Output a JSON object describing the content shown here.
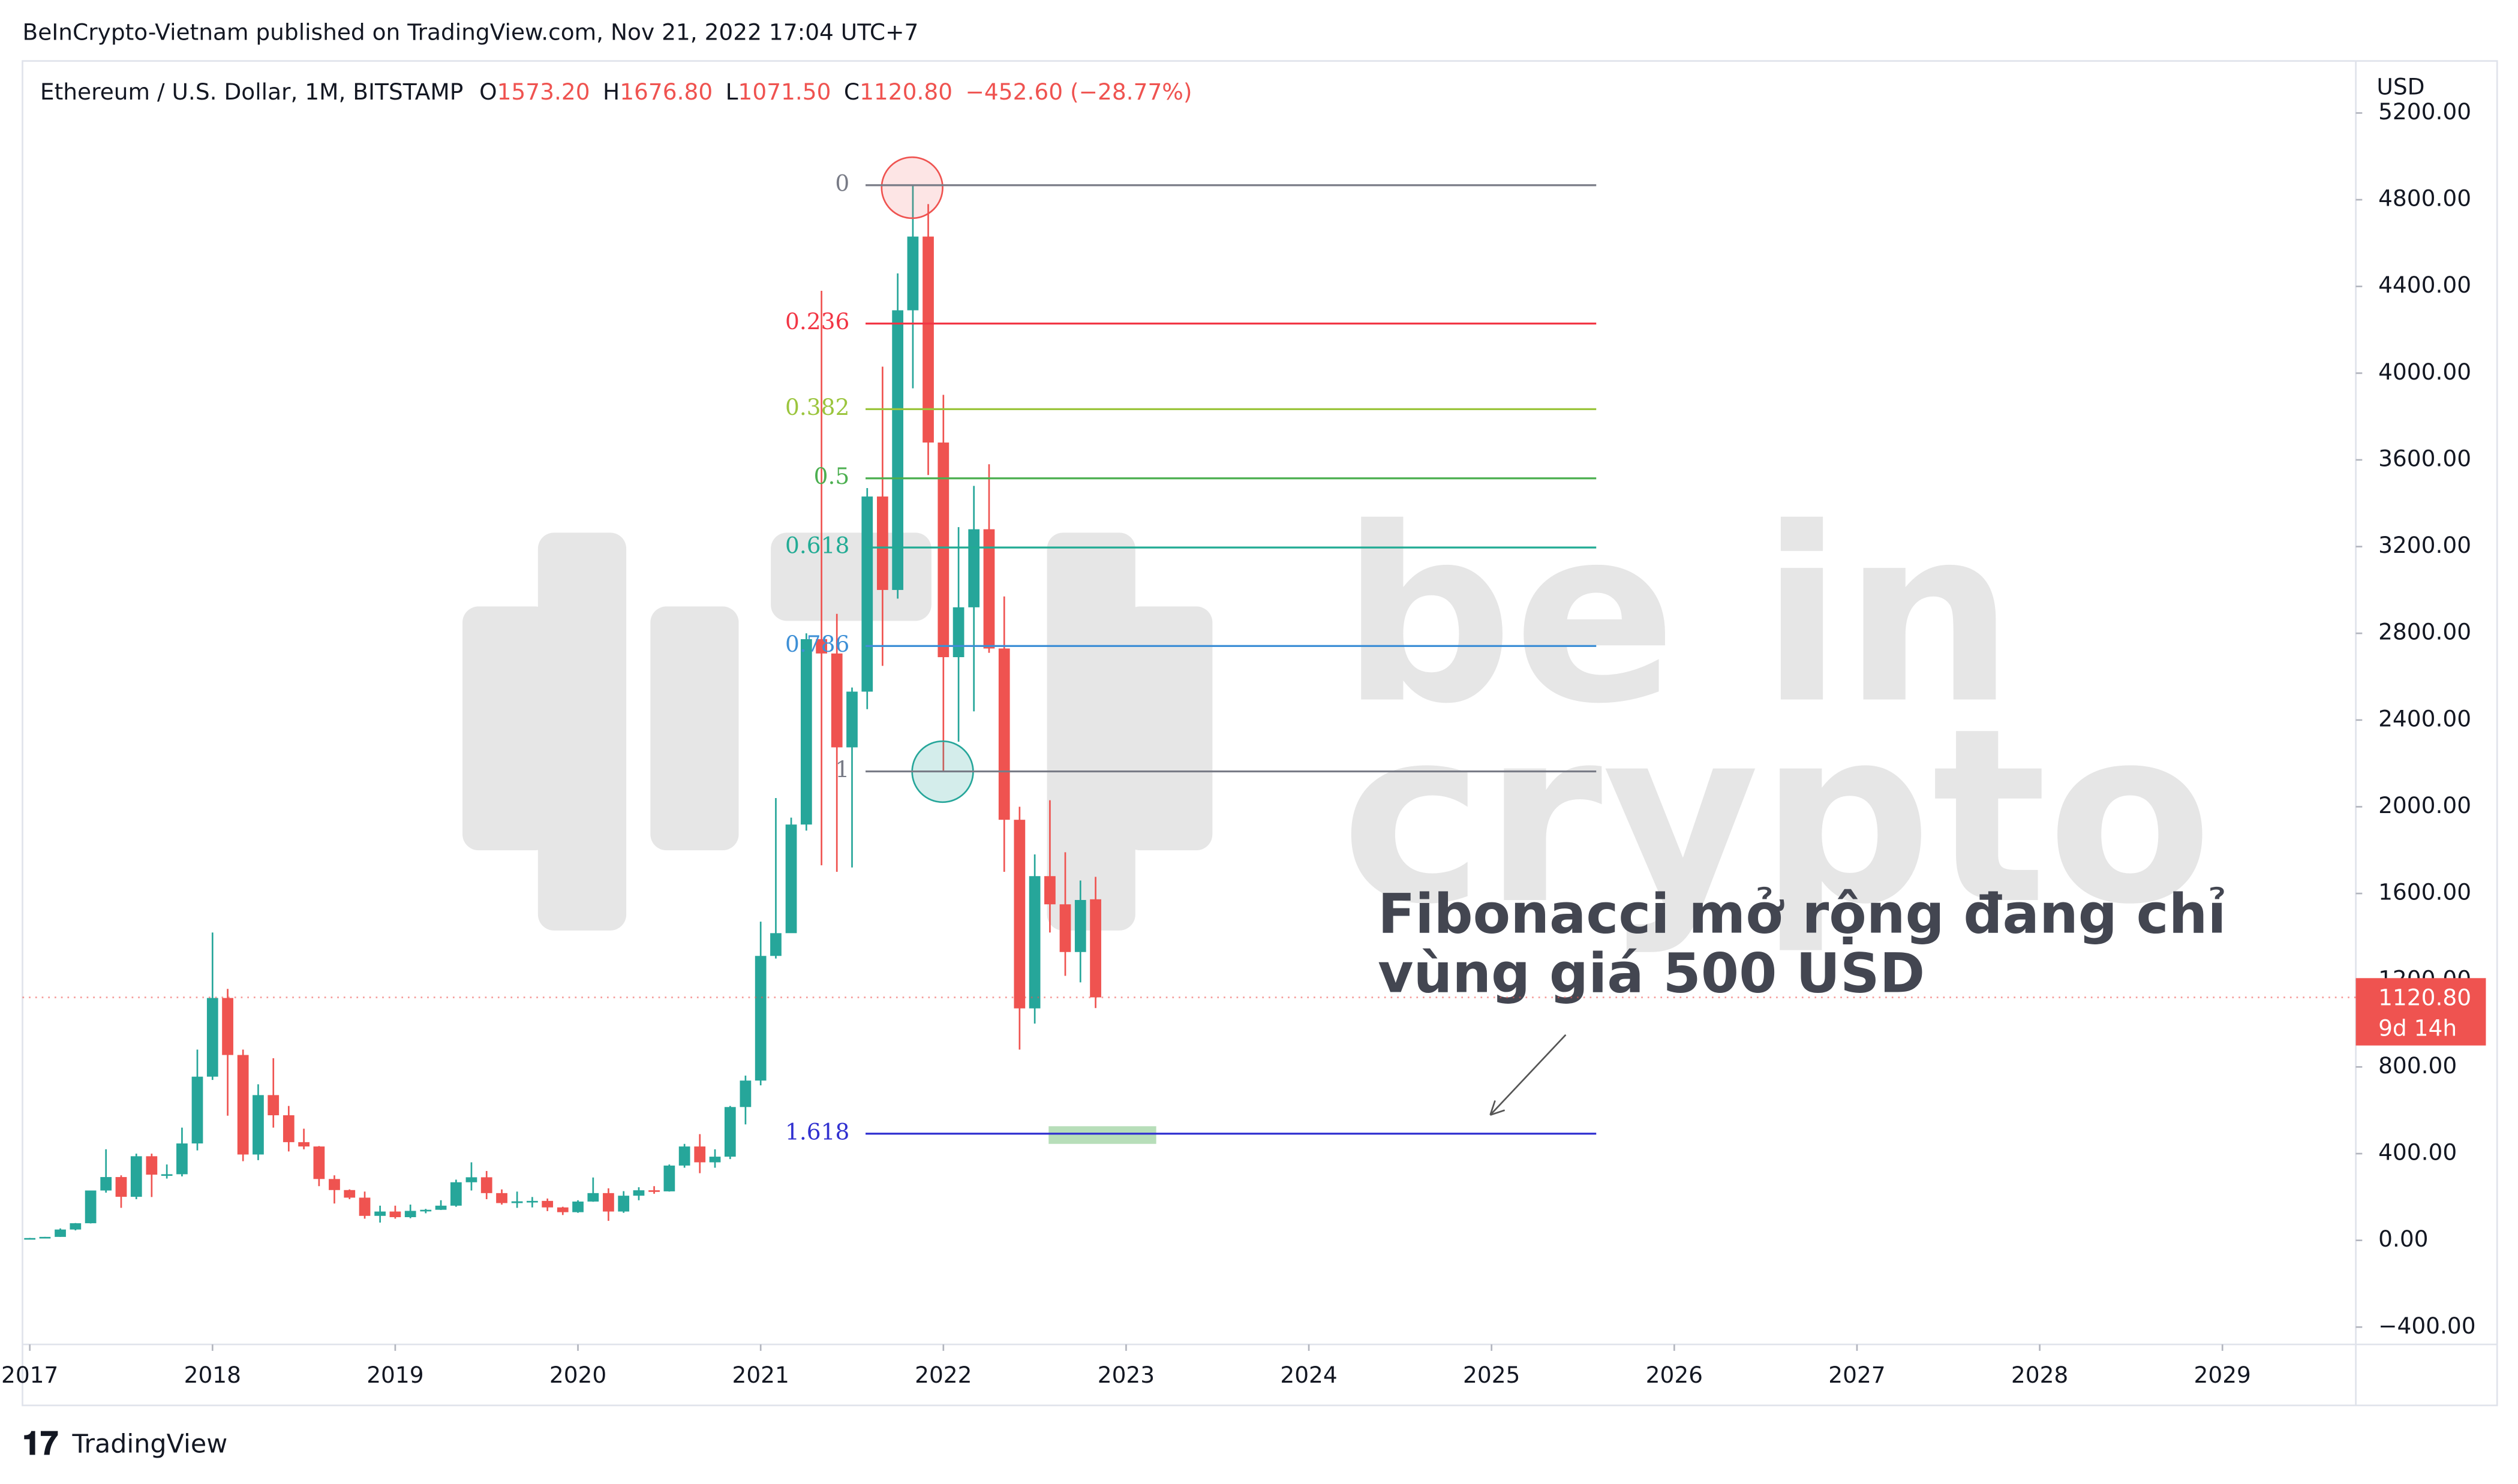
{
  "header": {
    "published": "BeInCrypto-Vietnam published on TradingView.com, Nov 21, 2022 17:04 UTC+7",
    "symbol": "Ethereum / U.S. Dollar, 1M, BITSTAMP",
    "ohlc": [
      {
        "key": "O",
        "value": "1573.20"
      },
      {
        "key": "H",
        "value": "1676.80"
      },
      {
        "key": "L",
        "value": "1071.50"
      },
      {
        "key": "C",
        "value": "1120.80"
      }
    ],
    "change": "−452.60 (−28.77%)"
  },
  "footer": {
    "brand": "TradingView"
  },
  "watermark": [
    "be in",
    "crypto"
  ],
  "chart_data": {
    "type": "candlestick",
    "x": [
      2017,
      2017.083,
      2017.167,
      2017.25,
      2017.333,
      2017.417,
      2017.5,
      2017.583,
      2017.667,
      2017.75,
      2017.833,
      2017.917,
      2018,
      2018.083,
      2018.167,
      2018.25,
      2018.333,
      2018.417,
      2018.5,
      2018.583,
      2018.667,
      2018.75,
      2018.833,
      2018.917,
      2019,
      2019.083,
      2019.167,
      2019.25,
      2019.333,
      2019.417,
      2019.5,
      2019.583,
      2019.667,
      2019.75,
      2019.833,
      2019.917,
      2020,
      2020.083,
      2020.167,
      2020.25,
      2020.333,
      2020.417,
      2020.5,
      2020.583,
      2020.667,
      2020.75,
      2020.833,
      2020.917,
      2021,
      2021.083,
      2021.167,
      2021.25,
      2021.333,
      2021.417,
      2021.5,
      2021.583,
      2021.667,
      2021.75,
      2021.833,
      2021.917,
      2022,
      2022.083,
      2022.167,
      2022.25,
      2022.333,
      2022.417,
      2022.5,
      2022.583,
      2022.667,
      2022.75,
      2022.833
    ],
    "open": [
      8,
      10.7,
      16,
      50,
      79,
      230,
      292,
      201,
      388,
      303,
      305,
      447,
      755,
      1118,
      855,
      396,
      670,
      577,
      453,
      433,
      283,
      232,
      197,
      113,
      133,
      107,
      136,
      141,
      160,
      268,
      291,
      218,
      172,
      180,
      182,
      152,
      130,
      179,
      218,
      133,
      206,
      231,
      226,
      345,
      433,
      360,
      386,
      615,
      737,
      1312,
      1417,
      1918,
      2773,
      2707,
      2274,
      2531,
      3431,
      3000,
      4290,
      4630,
      3680,
      2690,
      2920,
      3280,
      2730,
      1940,
      1070,
      1680,
      1550,
      1330,
      1573.2
    ],
    "high": [
      11,
      16,
      55,
      80,
      230,
      420,
      300,
      400,
      400,
      350,
      520,
      880,
      1420,
      1160,
      880,
      720,
      840,
      620,
      515,
      435,
      300,
      235,
      225,
      160,
      160,
      165,
      145,
      185,
      280,
      360,
      320,
      235,
      225,
      200,
      193,
      155,
      185,
      290,
      240,
      227,
      245,
      250,
      350,
      445,
      490,
      420,
      620,
      760,
      1470,
      2040,
      1950,
      2800,
      4380,
      2890,
      2550,
      3470,
      4030,
      4460,
      4870,
      4780,
      3900,
      3290,
      3480,
      3580,
      2970,
      2000,
      1780,
      2030,
      1790,
      1660,
      1676.8
    ],
    "low": [
      8,
      10.6,
      16,
      46,
      78,
      220,
      150,
      190,
      200,
      285,
      295,
      415,
      740,
      575,
      365,
      370,
      520,
      410,
      420,
      250,
      170,
      190,
      100,
      82,
      100,
      102,
      125,
      140,
      155,
      230,
      190,
      165,
      150,
      152,
      135,
      117,
      127,
      178,
      90,
      127,
      185,
      215,
      225,
      335,
      310,
      335,
      375,
      535,
      715,
      1300,
      1420,
      1890,
      1730,
      1700,
      1720,
      2450,
      2650,
      2960,
      3930,
      3530,
      2160,
      2300,
      2440,
      2710,
      1700,
      880,
      1000,
      1420,
      1220,
      1190,
      1071.5
    ],
    "close": [
      10.7,
      16,
      50,
      79,
      230,
      292,
      201,
      388,
      303,
      305,
      447,
      755,
      1118,
      855,
      396,
      670,
      577,
      453,
      433,
      283,
      232,
      197,
      113,
      133,
      107,
      136,
      141,
      160,
      268,
      291,
      218,
      172,
      180,
      182,
      152,
      130,
      179,
      218,
      133,
      206,
      231,
      226,
      345,
      433,
      360,
      386,
      615,
      737,
      1312,
      1417,
      1918,
      2773,
      2707,
      2274,
      2531,
      3431,
      3000,
      4290,
      4630,
      3680,
      2690,
      2920,
      3280,
      2730,
      1940,
      1070,
      1680,
      1550,
      1330,
      1570,
      1120.8
    ],
    "up_color": "#26a69a",
    "down_color": "#ef5350",
    "xlim": [
      2016.96,
      2029.73
    ],
    "xticks": [
      2017,
      2018,
      2019,
      2020,
      2021,
      2022,
      2023,
      2024,
      2025,
      2026,
      2027,
      2028,
      2029
    ],
    "ylim": [
      -480,
      5440
    ],
    "yticks": [
      {
        "value": -400,
        "label": "−400.00"
      },
      {
        "value": 0,
        "label": "0.00"
      },
      {
        "value": 400,
        "label": "400.00"
      },
      {
        "value": 800,
        "label": "800.00"
      },
      {
        "value": 1200,
        "label": "1200.00"
      },
      {
        "value": 1600,
        "label": "1600.00"
      },
      {
        "value": 2000,
        "label": "2000.00"
      },
      {
        "value": 2400,
        "label": "2400.00"
      },
      {
        "value": 2800,
        "label": "2800.00"
      },
      {
        "value": 3200,
        "label": "3200.00"
      },
      {
        "value": 3600,
        "label": "3600.00"
      },
      {
        "value": 4000,
        "label": "4000.00"
      },
      {
        "value": 4400,
        "label": "4400.00"
      },
      {
        "value": 4800,
        "label": "4800.00"
      },
      {
        "value": 5200,
        "label": "5200.00"
      }
    ],
    "y_unit": "USD",
    "grid": false,
    "price_tag": {
      "value": 1120.8,
      "label": "1120.80",
      "countdown": "9d 14h"
    },
    "fib": {
      "start": 4867,
      "end": 2163,
      "levels": [
        0,
        0.236,
        0.382,
        0.5,
        0.618,
        0.786,
        1,
        1.618
      ],
      "colors": [
        "#787b86",
        "#f23645",
        "#9bc53d",
        "#4caf50",
        "#22ab94",
        "#3d8fd6",
        "#787b86",
        "#3030d0"
      ]
    },
    "annotation": [
      "Fibonacci mở rộng đang chỉ",
      "vùng giá 500 USD"
    ]
  }
}
